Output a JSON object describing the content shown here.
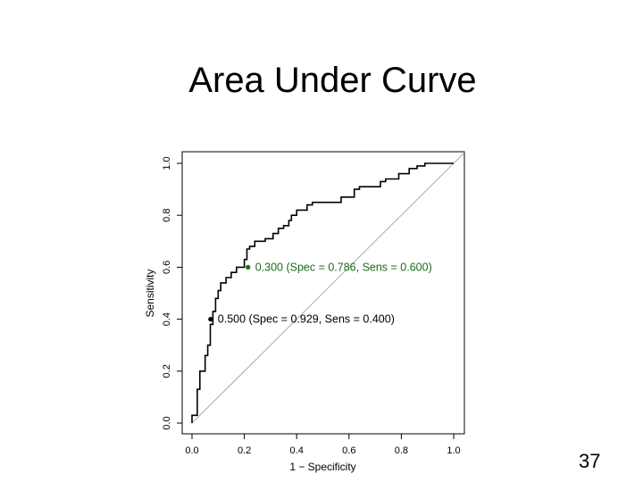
{
  "slide": {
    "title": "Area Under Curve",
    "page_number": "37"
  },
  "chart_data": {
    "type": "line",
    "title": "",
    "xlabel": "1 − Specificity",
    "ylabel": "Sensitivity",
    "xlim": [
      0.0,
      1.0
    ],
    "ylim": [
      0.0,
      1.0
    ],
    "x_ticks": [
      "0.0",
      "0.2",
      "0.4",
      "0.6",
      "0.8",
      "1.0"
    ],
    "y_ticks": [
      "0.0",
      "0.2",
      "0.4",
      "0.6",
      "0.8",
      "1.0"
    ],
    "grid": false,
    "legend": "none",
    "series": [
      {
        "color": "#000000",
        "x": [
          0.0,
          0.0,
          0.02,
          0.02,
          0.03,
          0.03,
          0.05,
          0.05,
          0.06,
          0.06,
          0.07,
          0.07,
          0.08,
          0.08,
          0.09,
          0.09,
          0.1,
          0.1,
          0.11,
          0.11,
          0.13,
          0.13,
          0.15,
          0.15,
          0.17,
          0.17,
          0.2,
          0.2,
          0.21,
          0.21,
          0.22,
          0.22,
          0.24,
          0.24,
          0.28,
          0.28,
          0.31,
          0.31,
          0.33,
          0.33,
          0.35,
          0.35,
          0.37,
          0.37,
          0.38,
          0.38,
          0.4,
          0.4,
          0.44,
          0.44,
          0.46,
          0.46,
          0.57,
          0.57,
          0.62,
          0.62,
          0.64,
          0.64,
          0.72,
          0.72,
          0.74,
          0.74,
          0.79,
          0.79,
          0.83,
          0.83,
          0.86,
          0.86,
          0.89,
          0.89,
          1.0
        ],
        "y": [
          0.0,
          0.03,
          0.03,
          0.13,
          0.13,
          0.2,
          0.2,
          0.26,
          0.26,
          0.3,
          0.3,
          0.38,
          0.38,
          0.43,
          0.43,
          0.48,
          0.48,
          0.51,
          0.51,
          0.54,
          0.54,
          0.56,
          0.56,
          0.58,
          0.58,
          0.6,
          0.6,
          0.63,
          0.63,
          0.67,
          0.67,
          0.68,
          0.68,
          0.7,
          0.7,
          0.71,
          0.71,
          0.73,
          0.73,
          0.75,
          0.75,
          0.76,
          0.76,
          0.78,
          0.78,
          0.8,
          0.8,
          0.82,
          0.82,
          0.84,
          0.84,
          0.85,
          0.85,
          0.87,
          0.87,
          0.9,
          0.9,
          0.91,
          0.91,
          0.93,
          0.93,
          0.94,
          0.94,
          0.96,
          0.96,
          0.98,
          0.98,
          0.99,
          0.99,
          1.0,
          1.0
        ]
      }
    ],
    "reference_line": {
      "from": [
        0,
        0
      ],
      "to": [
        1,
        1
      ],
      "color": "#aaaaaa"
    },
    "annotations": [
      {
        "label": "0.300 (Spec = 0.786, Sens = 0.600)",
        "x": 0.214,
        "y": 0.6,
        "color": "#1a6b1a"
      },
      {
        "label": "0.500 (Spec = 0.929, Sens = 0.400)",
        "x": 0.071,
        "y": 0.4,
        "color": "#000000"
      }
    ]
  }
}
